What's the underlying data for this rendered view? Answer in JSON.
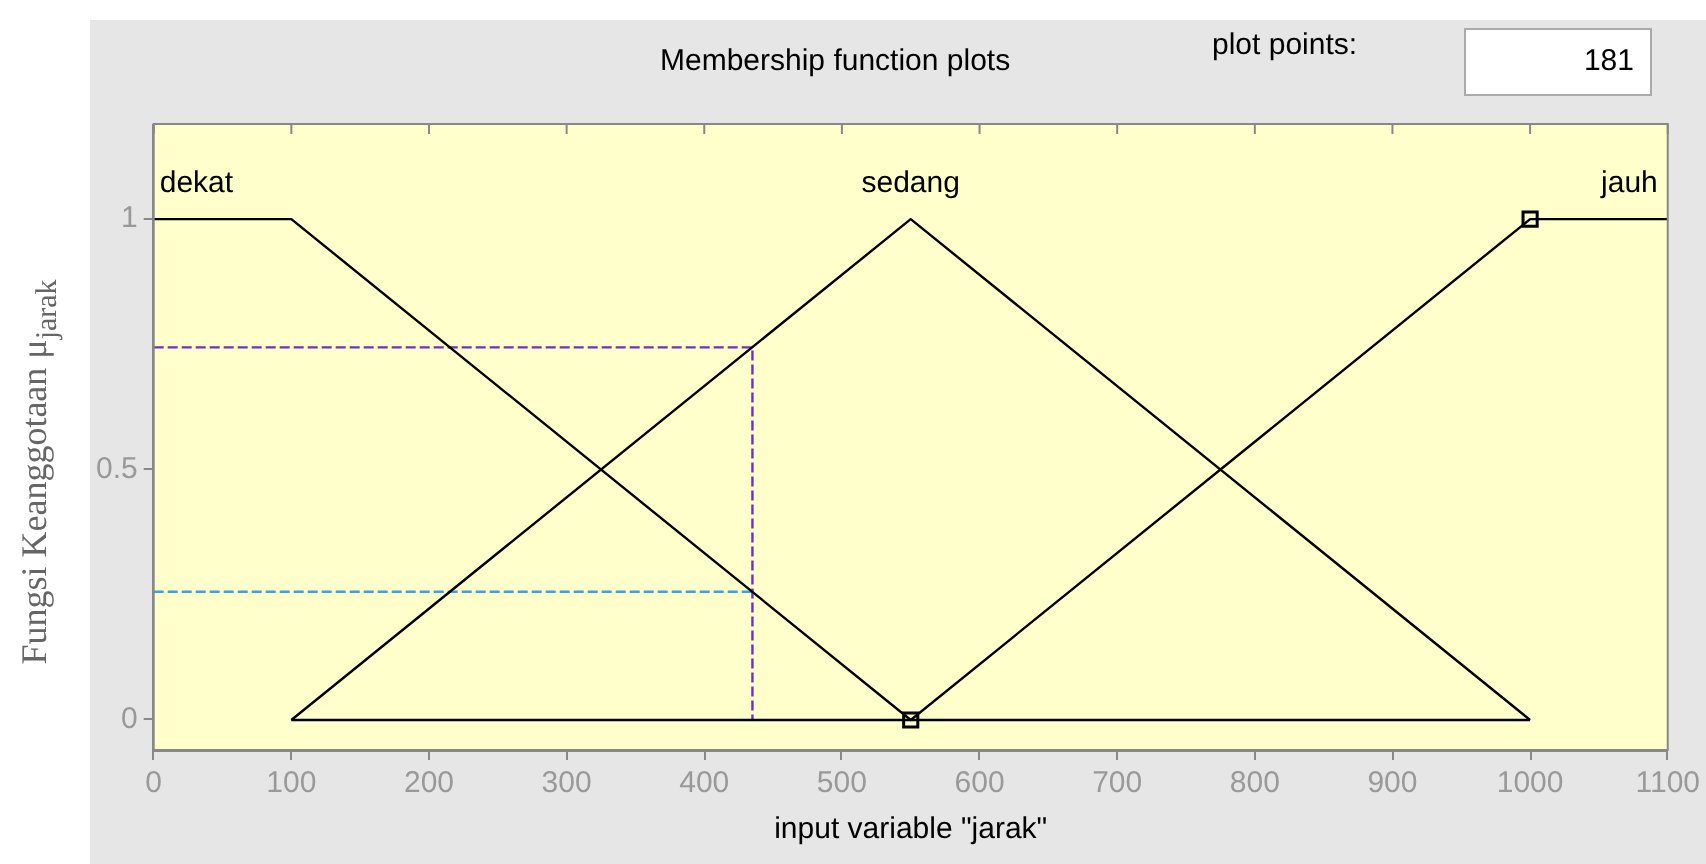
{
  "chart_data": {
    "type": "line",
    "title": "Membership function plots",
    "xlabel": "input variable \"jarak\"",
    "ylabel": "Fungsi Keanggotaan μ$_{jarak}$",
    "annotations": [
      "plot points:",
      "181"
    ],
    "xlim": [
      0,
      1100
    ],
    "xticks": [
      0,
      100,
      200,
      300,
      400,
      500,
      600,
      700,
      800,
      900,
      1000,
      1100
    ],
    "ylim": [
      -0.06,
      1.19
    ],
    "yticks": [
      0,
      0.5,
      1
    ],
    "grid": false,
    "legend": false,
    "marker": "none",
    "line_style": "solid",
    "series": [
      {
        "name": "dekat",
        "color": "#000000",
        "x": [
          0,
          100,
          550,
          1000
        ],
        "values": [
          1,
          1,
          0,
          0
        ]
      },
      {
        "name": "sedang",
        "color": "#000000",
        "x": [
          100,
          550,
          1000
        ],
        "values": [
          0,
          1,
          0
        ]
      },
      {
        "name": "jauh",
        "color": "#000000",
        "x": [
          100,
          550,
          1000,
          1100
        ],
        "values": [
          0,
          0,
          1,
          1
        ]
      },
      {
        "color": "#7030c0",
        "line_style": "dashed",
        "x": [
          0,
          435,
          435
        ],
        "values": [
          0.744,
          0.744,
          0
        ]
      },
      {
        "color": "#3f9fe0",
        "line_style": "dashed",
        "x": [
          0,
          435
        ],
        "values": [
          0.256,
          0.256
        ]
      },
      {
        "type": "scatter",
        "marker": "square",
        "color": "#000000",
        "x": [
          550,
          1000
        ],
        "values": [
          0,
          1
        ]
      }
    ]
  }
}
